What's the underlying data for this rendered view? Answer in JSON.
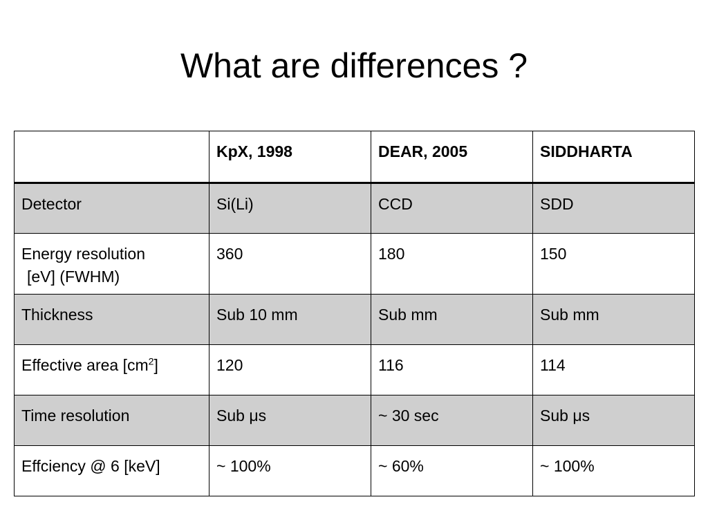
{
  "slide": {
    "title": "What are differences ?"
  },
  "table": {
    "header": [
      "",
      "KpX, 1998",
      "DEAR, 2005",
      "SIDDHARTA"
    ],
    "rows": [
      {
        "label": "Detector",
        "values": [
          "Si(Li)",
          "CCD",
          "SDD"
        ]
      },
      {
        "label": "Energy resolution",
        "label_line2": "[eV] (FWHM)",
        "values": [
          "360",
          "180",
          "150"
        ]
      },
      {
        "label": "Thickness",
        "values": [
          "Sub 10 mm",
          "Sub mm",
          "Sub mm"
        ]
      },
      {
        "label": "Effective area [cm",
        "label_sup": "2",
        "label_after": "]",
        "values": [
          "120",
          "116",
          "114"
        ]
      },
      {
        "label": "Time resolution",
        "values": [
          "Sub μs",
          "~ 30 sec",
          "Sub μs"
        ]
      },
      {
        "label": "Effciency @ 6 [keV]",
        "values": [
          "~ 100%",
          "~ 60%",
          "~ 100%"
        ]
      }
    ]
  },
  "colors": {
    "shaded_row": "#cfcfcf",
    "plain_row": "#ffffff",
    "border": "#000000"
  }
}
